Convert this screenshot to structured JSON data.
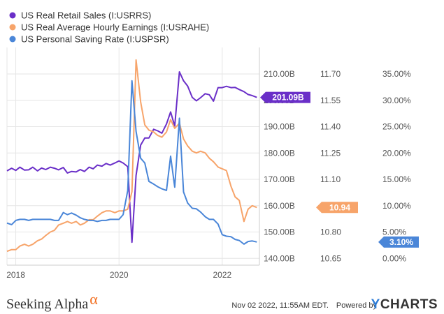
{
  "colors": {
    "retail": "#6a2fc8",
    "earnings": "#f7a46a",
    "saving": "#4a86d8",
    "grid": "#e6e6e6",
    "axis_text": "#555555",
    "text": "#333333",
    "alpha_orange": "#f26f21",
    "ycharts_blue": "#2b7bd6"
  },
  "chart_data": {
    "type": "line",
    "legend": {
      "position": "top-left"
    },
    "grid": true,
    "x_ticks": [
      "2018",
      "2020",
      "2022"
    ],
    "series": [
      {
        "name": "US Real Retail Sales (I:USRRS)",
        "axis": "left",
        "color": "#6a2fc8",
        "marker": "circle",
        "end_label": "201.09B",
        "x": [
          2017.83,
          2017.92,
          2018.0,
          2018.08,
          2018.17,
          2018.25,
          2018.33,
          2018.42,
          2018.5,
          2018.58,
          2018.67,
          2018.75,
          2018.83,
          2018.92,
          2019.0,
          2019.08,
          2019.17,
          2019.25,
          2019.33,
          2019.42,
          2019.5,
          2019.58,
          2019.67,
          2019.75,
          2019.83,
          2019.92,
          2020.0,
          2020.08,
          2020.17,
          2020.25,
          2020.33,
          2020.42,
          2020.5,
          2020.58,
          2020.67,
          2020.75,
          2020.83,
          2020.92,
          2021.0,
          2021.08,
          2021.17,
          2021.25,
          2021.33,
          2021.42,
          2021.5,
          2021.58,
          2021.67,
          2021.75,
          2021.83,
          2021.92,
          2022.0,
          2022.08,
          2022.17,
          2022.25,
          2022.33,
          2022.42,
          2022.5,
          2022.58,
          2022.67
        ],
        "y": [
          173.2,
          174.2,
          173.4,
          174.6,
          173.5,
          173.6,
          174.6,
          173.2,
          174.3,
          173.7,
          174.6,
          174.2,
          173.6,
          174.5,
          172.4,
          173.0,
          172.8,
          173.7,
          173.0,
          174.6,
          174.0,
          175.4,
          175.0,
          176.0,
          175.4,
          176.2,
          177.0,
          176.2,
          174.8,
          146.1,
          171.5,
          183.0,
          185.7,
          185.7,
          189.0,
          188.4,
          187.5,
          191.0,
          195.6,
          190.2,
          210.8,
          207.4,
          205.4,
          201.1,
          199.8,
          201.0,
          202.5,
          202.1,
          199.7,
          204.8,
          204.8,
          205.3,
          204.8,
          204.9,
          204.1,
          203.3,
          202.2,
          201.8,
          201.1
        ],
        "yaxis": {
          "min": 137.5,
          "max": 220.0,
          "ticks": [
            "210.00B",
            "200.00B",
            "190.00B",
            "180.00B",
            "170.00B",
            "160.00B",
            "150.00B",
            "140.00B"
          ]
        }
      },
      {
        "name": "US Real Average Hourly Earnings (I:USRAHE)",
        "axis": "middle",
        "color": "#f7a46a",
        "end_label": "10.94",
        "x": [
          2017.83,
          2017.92,
          2018.0,
          2018.08,
          2018.17,
          2018.25,
          2018.33,
          2018.42,
          2018.5,
          2018.58,
          2018.67,
          2018.75,
          2018.83,
          2018.92,
          2019.0,
          2019.08,
          2019.17,
          2019.25,
          2019.33,
          2019.42,
          2019.5,
          2019.58,
          2019.67,
          2019.75,
          2019.83,
          2019.92,
          2020.0,
          2020.08,
          2020.17,
          2020.25,
          2020.33,
          2020.42,
          2020.5,
          2020.58,
          2020.67,
          2020.75,
          2020.83,
          2020.92,
          2021.0,
          2021.08,
          2021.17,
          2021.25,
          2021.33,
          2021.42,
          2021.5,
          2021.58,
          2021.67,
          2021.75,
          2021.83,
          2021.92,
          2022.0,
          2022.08,
          2022.17,
          2022.25,
          2022.33,
          2022.42,
          2022.5,
          2022.58,
          2022.67
        ],
        "y": [
          10.69,
          10.7,
          10.7,
          10.72,
          10.73,
          10.72,
          10.73,
          10.75,
          10.76,
          10.78,
          10.8,
          10.81,
          10.84,
          10.85,
          10.86,
          10.85,
          10.86,
          10.84,
          10.85,
          10.87,
          10.87,
          10.89,
          10.91,
          10.92,
          10.92,
          10.91,
          10.92,
          10.92,
          10.93,
          11.03,
          11.78,
          11.54,
          11.41,
          11.38,
          11.37,
          11.35,
          11.34,
          11.37,
          11.44,
          11.39,
          11.42,
          11.33,
          11.29,
          11.26,
          11.25,
          11.26,
          11.25,
          11.22,
          11.2,
          11.17,
          11.16,
          11.15,
          11.06,
          11.0,
          10.98,
          10.86,
          10.93,
          10.95,
          10.94
        ],
        "yaxis": {
          "min": 10.625,
          "max": 11.825,
          "ticks": [
            "11.70",
            "11.55",
            "11.40",
            "11.25",
            "11.10",
            "10.95",
            "10.80",
            "10.65"
          ]
        }
      },
      {
        "name": "US Personal Saving Rate (I:USPSR)",
        "axis": "right",
        "color": "#4a86d8",
        "end_label": "3.10%",
        "x": [
          2017.83,
          2017.92,
          2018.0,
          2018.08,
          2018.17,
          2018.25,
          2018.33,
          2018.42,
          2018.5,
          2018.58,
          2018.67,
          2018.75,
          2018.83,
          2018.92,
          2019.0,
          2019.08,
          2019.17,
          2019.25,
          2019.33,
          2019.42,
          2019.5,
          2019.58,
          2019.67,
          2019.75,
          2019.83,
          2019.92,
          2020.0,
          2020.08,
          2020.17,
          2020.25,
          2020.33,
          2020.42,
          2020.5,
          2020.58,
          2020.67,
          2020.75,
          2020.83,
          2020.92,
          2021.0,
          2021.08,
          2021.17,
          2021.25,
          2021.33,
          2021.42,
          2021.5,
          2021.58,
          2021.67,
          2021.75,
          2021.83,
          2021.92,
          2022.0,
          2022.08,
          2022.17,
          2022.25,
          2022.33,
          2022.42,
          2022.5,
          2022.58,
          2022.67
        ],
        "y": [
          6.7,
          6.4,
          7.2,
          7.4,
          7.4,
          7.2,
          7.4,
          7.4,
          7.4,
          7.4,
          7.4,
          7.2,
          7.2,
          8.7,
          8.3,
          8.6,
          8.2,
          7.7,
          7.4,
          7.2,
          7.2,
          7.0,
          7.2,
          7.2,
          7.4,
          7.4,
          7.4,
          8.3,
          12.9,
          33.7,
          24.1,
          19.0,
          18.1,
          14.6,
          14.1,
          13.6,
          13.2,
          12.9,
          19.4,
          13.5,
          26.6,
          12.6,
          10.5,
          9.5,
          9.4,
          8.8,
          7.9,
          7.4,
          7.4,
          6.5,
          4.5,
          4.2,
          4.1,
          3.6,
          3.4,
          2.7,
          3.2,
          3.3,
          3.1
        ],
        "yaxis": {
          "min": -1.667,
          "max": 39.583,
          "ticks": [
            "35.00%",
            "30.00%",
            "25.00%",
            "20.00%",
            "15.00%",
            "10.00%",
            "5.00%",
            "0.00%"
          ]
        }
      }
    ]
  },
  "footer": {
    "brand": "Seeking Alpha",
    "brand_symbol": "α",
    "timestamp": "Nov 02 2022, 11:55AM EDT.",
    "powered_by": "Powered by",
    "ycharts_y": "Y",
    "ycharts_rest": "CHARTS"
  }
}
